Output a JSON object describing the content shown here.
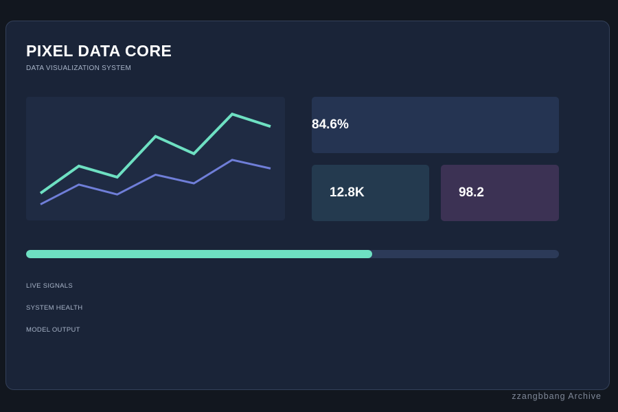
{
  "header": {
    "title": "PIXEL DATA CORE",
    "subtitle": "DATA VISUALIZATION SYSTEM"
  },
  "chart_data": {
    "type": "line",
    "x": [
      1,
      2,
      3,
      4,
      5,
      6,
      7
    ],
    "series": [
      {
        "values": [
          22,
          44,
          35,
          68,
          54,
          86,
          76
        ],
        "color": "#6ee0c2"
      },
      {
        "values": [
          13,
          29,
          21,
          37,
          30,
          49,
          42
        ],
        "color": "#6f7ed8"
      }
    ],
    "ylim": [
      0,
      100
    ],
    "grid": false,
    "legend": "none"
  },
  "metrics": {
    "primary": {
      "value": "84.6%"
    },
    "secondary": {
      "value": "12.8K"
    },
    "tertiary": {
      "value": "98.2"
    }
  },
  "progress": {
    "fraction": 0.65,
    "color": "#6ee0c2"
  },
  "sections": {
    "live_signals": "LIVE SIGNALS",
    "system_health": "SYSTEM HEALTH",
    "model_output": "MODEL OUTPUT"
  },
  "footer": {
    "watermark": "zzangbbang Archive"
  }
}
